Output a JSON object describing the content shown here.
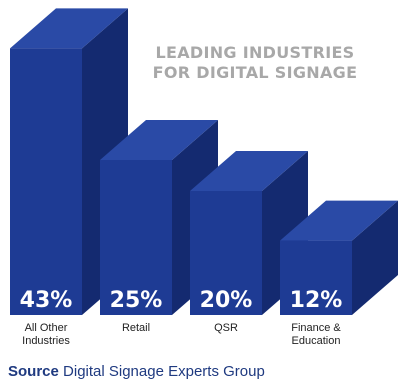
{
  "chart_data": {
    "type": "bar3d",
    "title": [
      "LEADING INDUSTRIES",
      "FOR DIGITAL SIGNAGE"
    ],
    "categories": [
      "All Other Industries",
      "Retail",
      "QSR",
      "Finance & Education"
    ],
    "values": [
      43,
      25,
      20,
      12
    ],
    "value_labels": [
      "43%",
      "25%",
      "20%",
      "12%"
    ],
    "color": "#1e3b94",
    "source_label": "Source",
    "source": "Digital Signage Experts Group"
  }
}
